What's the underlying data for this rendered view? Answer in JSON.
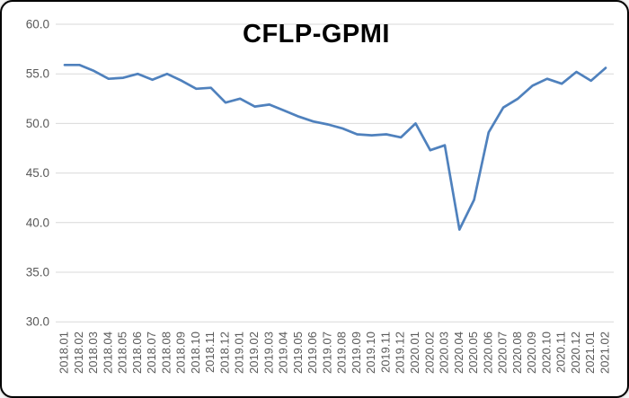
{
  "chart_data": {
    "type": "line",
    "title": "CFLP-GPMI",
    "xlabel": "",
    "ylabel": "",
    "ylim": [
      30.0,
      60.0
    ],
    "ytick_interval": 5,
    "ytick_labels": [
      "60.0",
      "55.0",
      "50.0",
      "45.0",
      "40.0",
      "35.0",
      "30.0"
    ],
    "grid": "horizontal",
    "legend_position": "none",
    "categories": [
      "2018.01",
      "2018.02",
      "2018.03",
      "2018.04",
      "2018.05",
      "2018.06",
      "2018.07",
      "2018.08",
      "2018.09",
      "2018.10",
      "2018.11",
      "2018.12",
      "2019.01",
      "2019.02",
      "2019.03",
      "2019.04",
      "2019.05",
      "2019.06",
      "2019.07",
      "2019.08",
      "2019.09",
      "2019.10",
      "2019.11",
      "2019.12",
      "2020.01",
      "2020.02",
      "2020.03",
      "2020.04",
      "2020.05",
      "2020.06",
      "2020.07",
      "2020.08",
      "2020.09",
      "2020.10",
      "2020.11",
      "2020.12",
      "2021.01",
      "2021.02"
    ],
    "series": [
      {
        "name": "CFLP-GPMI",
        "values": [
          55.9,
          55.9,
          55.3,
          54.5,
          54.6,
          55.0,
          54.4,
          55.0,
          54.3,
          53.5,
          53.6,
          52.1,
          52.5,
          51.7,
          51.9,
          51.3,
          50.7,
          50.2,
          49.9,
          49.5,
          48.9,
          48.8,
          48.9,
          48.6,
          50.0,
          47.3,
          47.8,
          39.3,
          42.3,
          49.1,
          51.6,
          52.5,
          53.8,
          54.5,
          54.0,
          55.2,
          54.3,
          55.6
        ]
      }
    ]
  },
  "colors": {
    "line": "#4F81BD",
    "gridline": "#D9D9D9",
    "axis_text": "#595959",
    "title_text": "#000000",
    "background": "#FFFFFF",
    "frame_border": "#000000"
  }
}
